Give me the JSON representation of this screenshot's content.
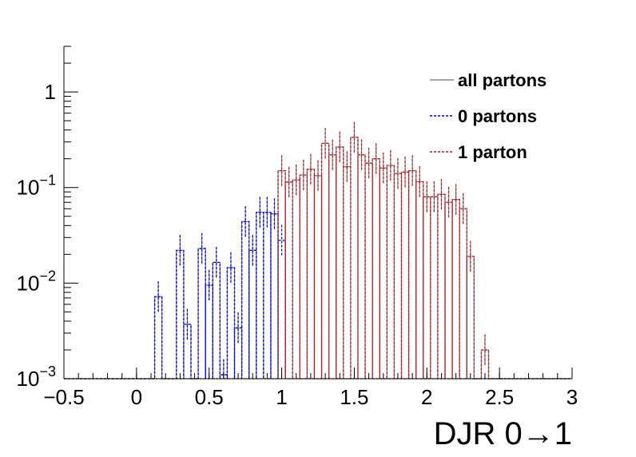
{
  "chart_data": {
    "type": "histogram",
    "title": "",
    "xlabel": "DJR 0→1",
    "ylabel": "",
    "xlim": [
      -0.5,
      3.0
    ],
    "ylim": [
      0.001,
      3.0
    ],
    "yscale": "log",
    "bin_width": 0.05,
    "x_ticks": [
      "−0.5",
      "0",
      "0.5",
      "1",
      "1.5",
      "2",
      "2.5",
      "3"
    ],
    "x_tick_values": [
      -0.5,
      0,
      0.5,
      1,
      1.5,
      2,
      2.5,
      3
    ],
    "y_ticks": [
      {
        "value": 1,
        "base": "1",
        "exp": ""
      },
      {
        "value": 0.1,
        "base": "10",
        "exp": "−1"
      },
      {
        "value": 0.01,
        "base": "10",
        "exp": "−2"
      },
      {
        "value": 0.001,
        "base": "10",
        "exp": "−3"
      }
    ],
    "legend_position": "top-right",
    "series": [
      {
        "name": "all partons",
        "color": "#8a8a8a",
        "style": "solid",
        "bins": [
          [
            0.125,
            0.0072
          ],
          [
            0.275,
            0.022
          ],
          [
            0.325,
            0.0037
          ],
          [
            0.425,
            0.023
          ],
          [
            0.475,
            0.0095
          ],
          [
            0.525,
            0.0165
          ],
          [
            0.575,
            0.0011
          ],
          [
            0.625,
            0.0145
          ],
          [
            0.675,
            0.0034
          ],
          [
            0.725,
            0.044
          ],
          [
            0.775,
            0.022
          ],
          [
            0.825,
            0.055
          ],
          [
            0.875,
            0.055
          ],
          [
            0.925,
            0.053
          ],
          [
            0.975,
            0.15
          ],
          [
            1.025,
            0.114
          ],
          [
            1.075,
            0.12
          ],
          [
            1.125,
            0.135
          ],
          [
            1.175,
            0.155
          ],
          [
            1.225,
            0.133
          ],
          [
            1.275,
            0.29
          ],
          [
            1.325,
            0.22
          ],
          [
            1.375,
            0.265
          ],
          [
            1.425,
            0.165
          ],
          [
            1.475,
            0.335
          ],
          [
            1.525,
            0.22
          ],
          [
            1.575,
            0.18
          ],
          [
            1.625,
            0.2
          ],
          [
            1.675,
            0.16
          ],
          [
            1.725,
            0.17
          ],
          [
            1.775,
            0.14
          ],
          [
            1.825,
            0.145
          ],
          [
            1.875,
            0.15
          ],
          [
            1.925,
            0.115
          ],
          [
            1.975,
            0.08
          ],
          [
            2.025,
            0.08
          ],
          [
            2.075,
            0.085
          ],
          [
            2.125,
            0.07
          ],
          [
            2.175,
            0.075
          ],
          [
            2.225,
            0.06
          ],
          [
            2.275,
            0.019
          ],
          [
            2.325,
            0.001
          ],
          [
            2.375,
            0.002
          ]
        ]
      },
      {
        "name": "0 partons",
        "color": "#0000cc",
        "style": "dotted",
        "bins": [
          [
            0.125,
            0.0072
          ],
          [
            0.275,
            0.022
          ],
          [
            0.325,
            0.0037
          ],
          [
            0.425,
            0.023
          ],
          [
            0.475,
            0.0095
          ],
          [
            0.525,
            0.0165
          ],
          [
            0.575,
            0.0011
          ],
          [
            0.625,
            0.0145
          ],
          [
            0.675,
            0.0034
          ],
          [
            0.725,
            0.044
          ],
          [
            0.775,
            0.022
          ],
          [
            0.825,
            0.055
          ],
          [
            0.875,
            0.055
          ],
          [
            0.925,
            0.053
          ],
          [
            0.975,
            0.028
          ]
        ]
      },
      {
        "name": "1 parton",
        "color": "#aa2222",
        "style": "dotted",
        "bins": [
          [
            0.925,
            0.001
          ],
          [
            0.975,
            0.15
          ],
          [
            1.025,
            0.114
          ],
          [
            1.075,
            0.12
          ],
          [
            1.125,
            0.135
          ],
          [
            1.175,
            0.155
          ],
          [
            1.225,
            0.133
          ],
          [
            1.275,
            0.29
          ],
          [
            1.325,
            0.22
          ],
          [
            1.375,
            0.265
          ],
          [
            1.425,
            0.165
          ],
          [
            1.475,
            0.335
          ],
          [
            1.525,
            0.22
          ],
          [
            1.575,
            0.18
          ],
          [
            1.625,
            0.2
          ],
          [
            1.675,
            0.16
          ],
          [
            1.725,
            0.17
          ],
          [
            1.775,
            0.14
          ],
          [
            1.825,
            0.145
          ],
          [
            1.875,
            0.15
          ],
          [
            1.925,
            0.115
          ],
          [
            1.975,
            0.08
          ],
          [
            2.025,
            0.08
          ],
          [
            2.075,
            0.085
          ],
          [
            2.125,
            0.07
          ],
          [
            2.175,
            0.075
          ],
          [
            2.225,
            0.06
          ],
          [
            2.275,
            0.019
          ],
          [
            2.325,
            0.001
          ],
          [
            2.375,
            0.002
          ]
        ]
      }
    ]
  }
}
